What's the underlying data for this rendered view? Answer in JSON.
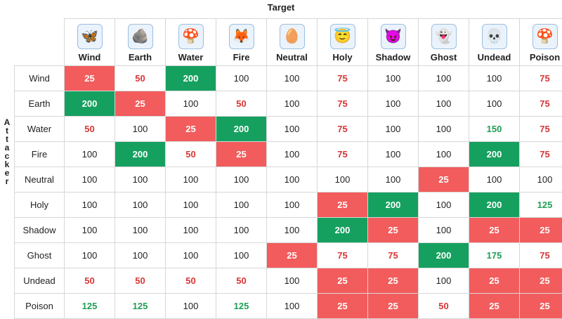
{
  "title": "Target",
  "attacker_label": "Attacker",
  "columns": [
    {
      "label": "Wind",
      "icon": "wind-monster-icon",
      "glyph": "🦋"
    },
    {
      "label": "Earth",
      "icon": "earth-monster-icon",
      "glyph": "🪨"
    },
    {
      "label": "Water",
      "icon": "water-monster-icon",
      "glyph": "🍄"
    },
    {
      "label": "Fire",
      "icon": "fire-monster-icon",
      "glyph": "🦊"
    },
    {
      "label": "Neutral",
      "icon": "neutral-monster-icon",
      "glyph": "🥚"
    },
    {
      "label": "Holy",
      "icon": "holy-monster-icon",
      "glyph": "😇"
    },
    {
      "label": "Shadow",
      "icon": "shadow-monster-icon",
      "glyph": "😈"
    },
    {
      "label": "Ghost",
      "icon": "ghost-monster-icon",
      "glyph": "👻"
    },
    {
      "label": "Undead",
      "icon": "undead-monster-icon",
      "glyph": "💀"
    },
    {
      "label": "Poison",
      "icon": "poison-monster-icon",
      "glyph": "🍄"
    }
  ],
  "rows": [
    {
      "label": "Wind",
      "cells": [
        {
          "v": "25",
          "s": "red-bg"
        },
        {
          "v": "50",
          "s": "red"
        },
        {
          "v": "200",
          "s": "green-bg"
        },
        {
          "v": "100",
          "s": "plain"
        },
        {
          "v": "100",
          "s": "plain"
        },
        {
          "v": "75",
          "s": "red"
        },
        {
          "v": "100",
          "s": "plain"
        },
        {
          "v": "100",
          "s": "plain"
        },
        {
          "v": "100",
          "s": "plain"
        },
        {
          "v": "75",
          "s": "red"
        }
      ]
    },
    {
      "label": "Earth",
      "cells": [
        {
          "v": "200",
          "s": "green-bg"
        },
        {
          "v": "25",
          "s": "red-bg"
        },
        {
          "v": "100",
          "s": "plain"
        },
        {
          "v": "50",
          "s": "red"
        },
        {
          "v": "100",
          "s": "plain"
        },
        {
          "v": "75",
          "s": "red"
        },
        {
          "v": "100",
          "s": "plain"
        },
        {
          "v": "100",
          "s": "plain"
        },
        {
          "v": "100",
          "s": "plain"
        },
        {
          "v": "75",
          "s": "red"
        }
      ]
    },
    {
      "label": "Water",
      "cells": [
        {
          "v": "50",
          "s": "red"
        },
        {
          "v": "100",
          "s": "plain"
        },
        {
          "v": "25",
          "s": "red-bg"
        },
        {
          "v": "200",
          "s": "green-bg"
        },
        {
          "v": "100",
          "s": "plain"
        },
        {
          "v": "75",
          "s": "red"
        },
        {
          "v": "100",
          "s": "plain"
        },
        {
          "v": "100",
          "s": "plain"
        },
        {
          "v": "150",
          "s": "green"
        },
        {
          "v": "75",
          "s": "red"
        }
      ]
    },
    {
      "label": "Fire",
      "cells": [
        {
          "v": "100",
          "s": "plain"
        },
        {
          "v": "200",
          "s": "green-bg"
        },
        {
          "v": "50",
          "s": "red"
        },
        {
          "v": "25",
          "s": "red-bg"
        },
        {
          "v": "100",
          "s": "plain"
        },
        {
          "v": "75",
          "s": "red"
        },
        {
          "v": "100",
          "s": "plain"
        },
        {
          "v": "100",
          "s": "plain"
        },
        {
          "v": "200",
          "s": "green-bg"
        },
        {
          "v": "75",
          "s": "red"
        }
      ]
    },
    {
      "label": "Neutral",
      "cells": [
        {
          "v": "100",
          "s": "plain"
        },
        {
          "v": "100",
          "s": "plain"
        },
        {
          "v": "100",
          "s": "plain"
        },
        {
          "v": "100",
          "s": "plain"
        },
        {
          "v": "100",
          "s": "plain"
        },
        {
          "v": "100",
          "s": "plain"
        },
        {
          "v": "100",
          "s": "plain"
        },
        {
          "v": "25",
          "s": "red-bg"
        },
        {
          "v": "100",
          "s": "plain"
        },
        {
          "v": "100",
          "s": "plain"
        }
      ]
    },
    {
      "label": "Holy",
      "cells": [
        {
          "v": "100",
          "s": "plain"
        },
        {
          "v": "100",
          "s": "plain"
        },
        {
          "v": "100",
          "s": "plain"
        },
        {
          "v": "100",
          "s": "plain"
        },
        {
          "v": "100",
          "s": "plain"
        },
        {
          "v": "25",
          "s": "red-bg"
        },
        {
          "v": "200",
          "s": "green-bg"
        },
        {
          "v": "100",
          "s": "plain"
        },
        {
          "v": "200",
          "s": "green-bg"
        },
        {
          "v": "125",
          "s": "green"
        }
      ]
    },
    {
      "label": "Shadow",
      "cells": [
        {
          "v": "100",
          "s": "plain"
        },
        {
          "v": "100",
          "s": "plain"
        },
        {
          "v": "100",
          "s": "plain"
        },
        {
          "v": "100",
          "s": "plain"
        },
        {
          "v": "100",
          "s": "plain"
        },
        {
          "v": "200",
          "s": "green-bg"
        },
        {
          "v": "25",
          "s": "red-bg"
        },
        {
          "v": "100",
          "s": "plain"
        },
        {
          "v": "25",
          "s": "red-bg"
        },
        {
          "v": "25",
          "s": "red-bg"
        }
      ]
    },
    {
      "label": "Ghost",
      "cells": [
        {
          "v": "100",
          "s": "plain"
        },
        {
          "v": "100",
          "s": "plain"
        },
        {
          "v": "100",
          "s": "plain"
        },
        {
          "v": "100",
          "s": "plain"
        },
        {
          "v": "25",
          "s": "red-bg"
        },
        {
          "v": "75",
          "s": "red"
        },
        {
          "v": "75",
          "s": "red"
        },
        {
          "v": "200",
          "s": "green-bg"
        },
        {
          "v": "175",
          "s": "green"
        },
        {
          "v": "75",
          "s": "red"
        }
      ]
    },
    {
      "label": "Undead",
      "cells": [
        {
          "v": "50",
          "s": "red"
        },
        {
          "v": "50",
          "s": "red"
        },
        {
          "v": "50",
          "s": "red"
        },
        {
          "v": "50",
          "s": "red"
        },
        {
          "v": "100",
          "s": "plain"
        },
        {
          "v": "25",
          "s": "red-bg"
        },
        {
          "v": "25",
          "s": "red-bg"
        },
        {
          "v": "100",
          "s": "plain"
        },
        {
          "v": "25",
          "s": "red-bg"
        },
        {
          "v": "25",
          "s": "red-bg"
        }
      ]
    },
    {
      "label": "Poison",
      "cells": [
        {
          "v": "125",
          "s": "green"
        },
        {
          "v": "125",
          "s": "green"
        },
        {
          "v": "100",
          "s": "plain"
        },
        {
          "v": "125",
          "s": "green"
        },
        {
          "v": "100",
          "s": "plain"
        },
        {
          "v": "25",
          "s": "red-bg"
        },
        {
          "v": "25",
          "s": "red-bg"
        },
        {
          "v": "50",
          "s": "red"
        },
        {
          "v": "25",
          "s": "red-bg"
        },
        {
          "v": "25",
          "s": "red-bg"
        }
      ]
    }
  ],
  "colors": {
    "strong_weak_bg": "#f25c5c",
    "strong_effective_bg": "#16a060",
    "weak_text": "#d93535",
    "effective_text": "#1f9e55"
  }
}
